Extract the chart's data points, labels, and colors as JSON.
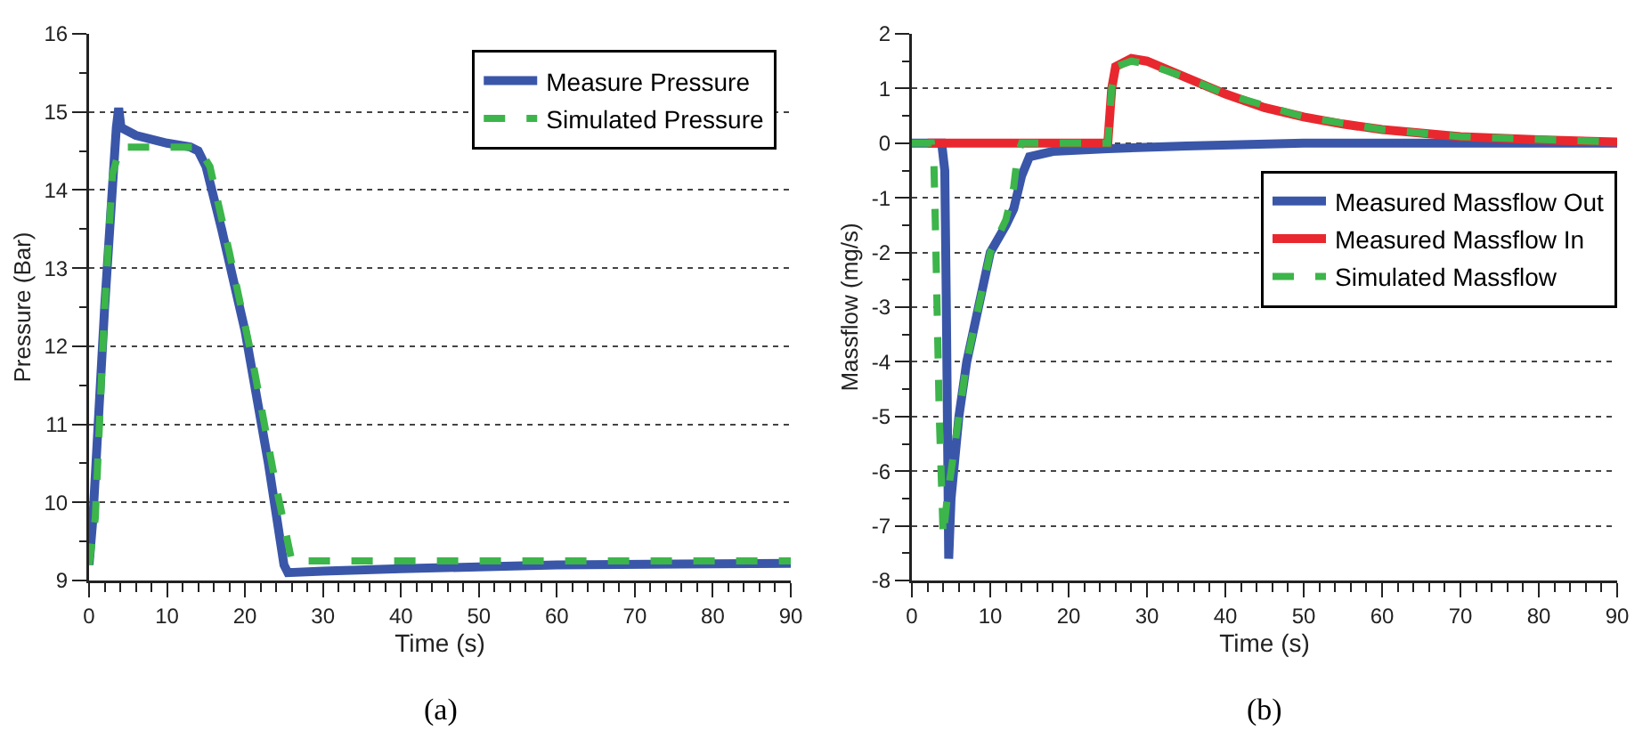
{
  "chart_data": [
    {
      "type": "line",
      "xlabel": "Time (s)",
      "ylabel": "Pressure (Bar)",
      "annotations": [
        "(a)"
      ],
      "xlim": [
        0,
        90
      ],
      "xticks": [
        0,
        10,
        20,
        30,
        40,
        50,
        60,
        70,
        80,
        90
      ],
      "ylim": [
        9,
        16
      ],
      "yticks": [
        9,
        10,
        11,
        12,
        13,
        14,
        15,
        16
      ],
      "grid": "y",
      "legend": "top right",
      "marker": "none",
      "series": [
        {
          "name": "Measure Pressure",
          "color": "#3a56a8",
          "line_style": "solid",
          "x": [
            0,
            0.5,
            2,
            3.5,
            3.8,
            4.1,
            6,
            10,
            13,
            14,
            15,
            17,
            20,
            23,
            25,
            25.5,
            30,
            40,
            60,
            90
          ],
          "values": [
            9.2,
            9.8,
            12.5,
            14.8,
            15.05,
            14.8,
            14.7,
            14.6,
            14.55,
            14.5,
            14.3,
            13.5,
            12.2,
            10.5,
            9.2,
            9.1,
            9.12,
            9.15,
            9.2,
            9.22
          ]
        },
        {
          "name": "Simulated Pressure",
          "color": "#3cb54a",
          "line_style": "dashed",
          "x": [
            0,
            0.8,
            2,
            3,
            4,
            14,
            15.5,
            18,
            21,
            24,
            26,
            90
          ],
          "values": [
            9.2,
            9.8,
            12.5,
            14.2,
            14.55,
            14.55,
            14.3,
            13.2,
            11.8,
            10.2,
            9.25,
            9.25
          ]
        }
      ]
    },
    {
      "type": "line",
      "xlabel": "Time (s)",
      "ylabel": "Massflow (mg/s)",
      "annotations": [
        "(b)"
      ],
      "xlim": [
        0,
        90
      ],
      "xticks": [
        0,
        10,
        20,
        30,
        40,
        50,
        60,
        70,
        80,
        90
      ],
      "ylim": [
        -8,
        2
      ],
      "yticks": [
        -8,
        -7,
        -6,
        -5,
        -4,
        -3,
        -2,
        -1,
        0,
        1,
        2
      ],
      "grid": "y",
      "legend": "right",
      "marker": "none",
      "series": [
        {
          "name": "Measured Massflow Out",
          "color": "#3a56a8",
          "line_style": "solid",
          "x": [
            0,
            3.8,
            4.2,
            4.4,
            4.7,
            5,
            6,
            7,
            8.5,
            10,
            12,
            13,
            14,
            15,
            18,
            25,
            35,
            50,
            90
          ],
          "values": [
            0,
            0,
            -0.5,
            -3,
            -7.6,
            -6.5,
            -5,
            -4,
            -3,
            -2,
            -1.5,
            -1.2,
            -0.6,
            -0.25,
            -0.15,
            -0.1,
            -0.05,
            0,
            0
          ]
        },
        {
          "name": "Measured Massflow In",
          "color": "#e8282e",
          "line_style": "solid",
          "x": [
            2,
            25,
            25.5,
            26,
            28,
            30,
            35,
            40,
            45,
            50,
            55,
            60,
            70,
            80,
            90
          ],
          "values": [
            0,
            0,
            1.0,
            1.4,
            1.55,
            1.5,
            1.2,
            0.9,
            0.65,
            0.48,
            0.35,
            0.25,
            0.12,
            0.06,
            0.02
          ]
        },
        {
          "name": "Simulated Massflow",
          "color": "#3cb54a",
          "line_style": "dashed",
          "x": [
            0,
            2.5,
            2.8,
            3,
            3.5,
            4,
            4.5,
            5,
            6,
            7,
            8.5,
            10,
            12,
            13,
            13.5,
            14,
            25,
            25.5,
            26,
            28,
            30,
            35,
            40,
            50,
            60,
            70,
            90
          ],
          "values": [
            0,
            0,
            -0.3,
            -1.5,
            -5,
            -7.2,
            -6.5,
            -6,
            -5,
            -4,
            -3,
            -2,
            -1.4,
            -0.8,
            -0.2,
            0,
            0,
            1.0,
            1.4,
            1.5,
            1.45,
            1.2,
            0.9,
            0.48,
            0.25,
            0.12,
            0.02
          ]
        }
      ]
    }
  ]
}
